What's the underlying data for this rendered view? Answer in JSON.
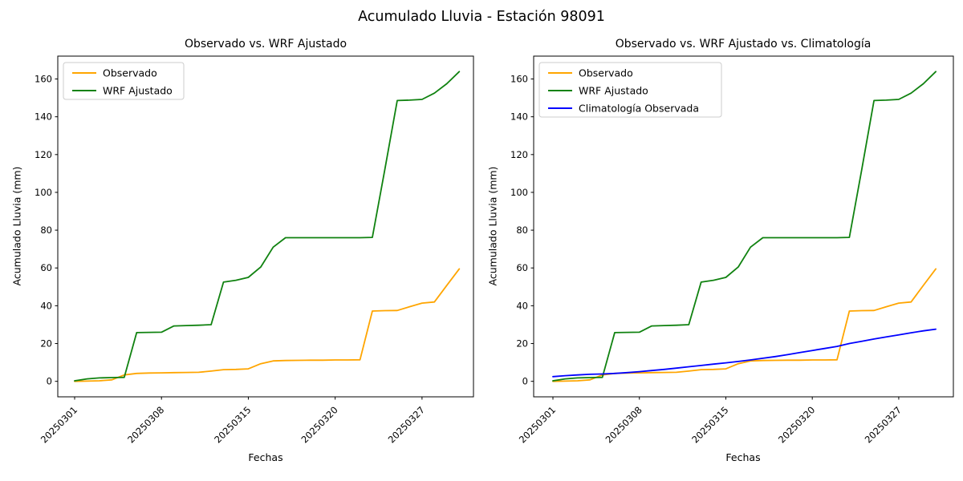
{
  "suptitle": "Acumulado Lluvia - Estación 98091",
  "chart_data": {
    "type": "line",
    "n_points": 32,
    "x_tick_indices": [
      0,
      7,
      14,
      21,
      28
    ],
    "x_tick_labels": [
      "20250301",
      "20250308",
      "20250315",
      "20250320",
      "20250327"
    ],
    "y_ticks": [
      0,
      20,
      40,
      60,
      80,
      100,
      120,
      140,
      160
    ],
    "ylim": [
      -8.2,
      172.1
    ],
    "grid": false,
    "legend_position": "upper-left",
    "series": [
      {
        "id": "observado",
        "name": "Observado",
        "color": "#ffa500",
        "values": [
          0,
          0.1,
          0.3,
          0.8,
          3.4,
          4.2,
          4.4,
          4.5,
          4.6,
          4.7,
          4.8,
          5.4,
          6.2,
          6.3,
          6.6,
          9.3,
          10.8,
          11.0,
          11.1,
          11.2,
          11.2,
          11.3,
          11.3,
          11.4,
          37.2,
          37.4,
          37.5,
          39.5,
          41.4,
          42.0,
          50.8,
          59.5
        ]
      },
      {
        "id": "wrf",
        "name": "WRF Ajustado",
        "color": "#108210",
        "values": [
          0.3,
          1.3,
          1.8,
          2.0,
          2.1,
          25.8,
          25.9,
          26.0,
          29.3,
          29.5,
          29.7,
          30.0,
          52.5,
          53.5,
          55.0,
          60.5,
          71.0,
          76.0,
          76.0,
          76.0,
          76.0,
          76.0,
          76.0,
          76.0,
          76.2,
          112.0,
          148.6,
          148.8,
          149.2,
          152.5,
          157.5,
          163.9
        ]
      },
      {
        "id": "climatologia",
        "name": "Climatología Observada",
        "color": "#0000ff",
        "values": [
          2.5,
          3.0,
          3.4,
          3.7,
          3.9,
          4.2,
          4.6,
          5.1,
          5.7,
          6.3,
          7.0,
          7.7,
          8.4,
          9.1,
          9.8,
          10.5,
          11.3,
          12.2,
          13.1,
          14.1,
          15.2,
          16.3,
          17.4,
          18.5,
          20.0,
          21.2,
          22.4,
          23.5,
          24.6,
          25.7,
          26.7,
          27.6
        ]
      }
    ],
    "subplots": [
      {
        "title": "Observado vs. WRF Ajustado",
        "xlabel": "Fechas",
        "ylabel": "Acumulado Lluvia (mm)",
        "series_ids": [
          "observado",
          "wrf"
        ]
      },
      {
        "title": "Observado vs. WRF Ajustado vs. Climatología",
        "xlabel": "Fechas",
        "ylabel": "Acumulado Lluvia (mm)",
        "series_ids": [
          "observado",
          "wrf",
          "climatologia"
        ]
      }
    ]
  },
  "style": {
    "spine_color": "#000000",
    "legend_border_color": "#cccccc",
    "legend_background": "rgba(255,255,255,0.85)"
  }
}
